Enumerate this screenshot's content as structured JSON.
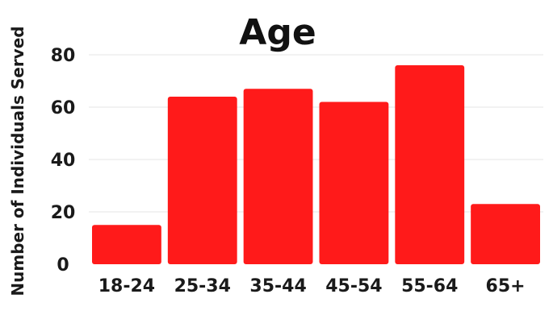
{
  "chart_data": {
    "type": "bar",
    "title": "Age",
    "xlabel": "",
    "ylabel": "Number of Individuals Served",
    "categories": [
      "18-24",
      "25-34",
      "35-44",
      "45-54",
      "55-64",
      "65+"
    ],
    "values": [
      15,
      64,
      67,
      62,
      76,
      23
    ],
    "ylim": [
      0,
      80
    ],
    "yticks": [
      0,
      20,
      40,
      60,
      80
    ],
    "grid": true,
    "legend": "none",
    "bar_color": "#ff1a1a",
    "text_color": "#1a1a1a"
  }
}
